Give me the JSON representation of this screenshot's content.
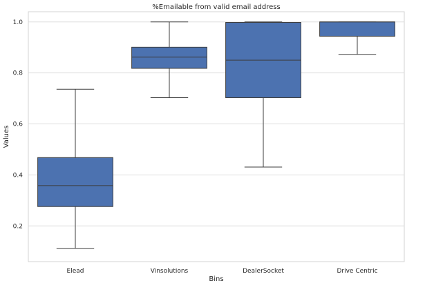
{
  "chart_data": {
    "type": "box",
    "title": "%Emailable from valid email address",
    "xlabel": "Bins",
    "ylabel": "Values",
    "ylim": [
      0.06,
      1.04
    ],
    "yticks": [
      0.2,
      0.4,
      0.6,
      0.8,
      1.0
    ],
    "ytick_labels": [
      "0.2",
      "0.4",
      "0.6",
      "0.8",
      "1.0"
    ],
    "grid": "horizontal",
    "box_color": "#4c72b0",
    "median_color": "#3d3d3d",
    "categories": [
      "Elead",
      "Vinsolutions",
      "DealerSocket",
      "Drive Centric"
    ],
    "boxes": [
      {
        "category": "Elead",
        "whisker_low": 0.112,
        "q1": 0.276,
        "median": 0.358,
        "q3": 0.468,
        "whisker_high": 0.736
      },
      {
        "category": "Vinsolutions",
        "whisker_low": 0.703,
        "q1": 0.818,
        "median": 0.862,
        "q3": 0.901,
        "whisker_high": 1.0
      },
      {
        "category": "DealerSocket",
        "whisker_low": 0.431,
        "q1": 0.703,
        "median": 0.85,
        "q3": 0.998,
        "whisker_high": 1.0
      },
      {
        "category": "Drive Centric",
        "whisker_low": 0.873,
        "q1": 0.944,
        "median": 1.0,
        "q3": 1.0,
        "whisker_high": 1.0
      }
    ]
  }
}
